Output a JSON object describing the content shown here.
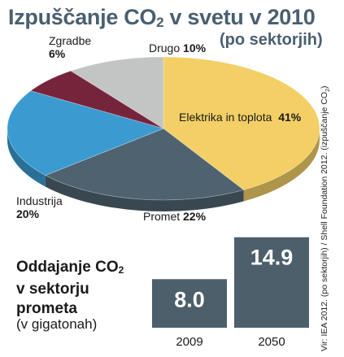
{
  "header": {
    "title_prefix": "Izpuščanje CO",
    "title_sub": "2",
    "title_suffix": " v svetu v 2010",
    "subtitle": "(po sektorjih)"
  },
  "chart_data": [
    {
      "type": "pie",
      "title": "Izpuščanje CO2 v svetu v 2010",
      "subtitle": "(po sektorjih)",
      "slices": [
        {
          "label": "Elektrika in toplota",
          "value": 41,
          "value_text": "41%",
          "color": "#f3cf66"
        },
        {
          "label": "Promet",
          "value": 22,
          "value_text": "22%",
          "color": "#4f6270"
        },
        {
          "label": "Industrija",
          "value": 20,
          "value_text": "20%",
          "color": "#3b9bd0"
        },
        {
          "label": "Zgradbe",
          "value": 6,
          "value_text": "6%",
          "color": "#76243c"
        },
        {
          "label": "Drugo",
          "value": 10,
          "value_text": "10%",
          "color": "#c2c5c4"
        }
      ]
    },
    {
      "type": "bar",
      "title_line1": "Oddajanje CO",
      "title_sub": "2",
      "title_line2": "v sektorju",
      "title_line3": "prometa",
      "unit": "(v gigatonah)",
      "categories": [
        "2009",
        "2050"
      ],
      "values": [
        8.0,
        14.9
      ],
      "value_labels": [
        "8.0",
        "14.9"
      ],
      "color": "#4d5f6b"
    }
  ],
  "source": {
    "text_prefix": "Vir: IEA 2012. (po sektorjih) / Shell Foundation 2012. (izpuščanje CO",
    "text_sub": "2",
    "text_suffix": ")"
  }
}
